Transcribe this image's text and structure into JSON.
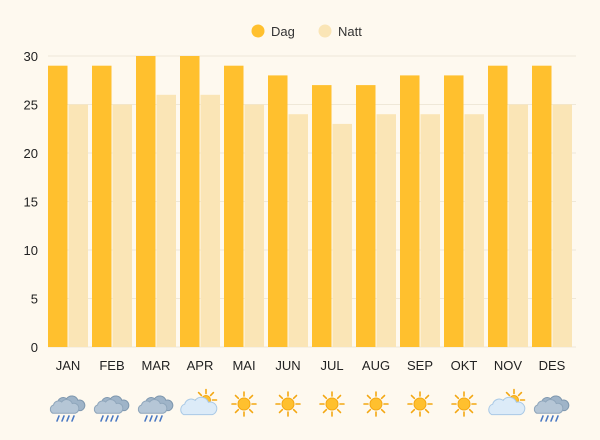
{
  "chart_data": {
    "type": "bar",
    "categories": [
      "JAN",
      "FEB",
      "MAR",
      "APR",
      "MAI",
      "JUN",
      "JUL",
      "AUG",
      "SEP",
      "OKT",
      "NOV",
      "DES"
    ],
    "series": [
      {
        "name": "Dag",
        "values": [
          29,
          29,
          30,
          30,
          29,
          28,
          27,
          27,
          28,
          28,
          29,
          29
        ],
        "color": "#FFC02E"
      },
      {
        "name": "Natt",
        "values": [
          25,
          25,
          26,
          26,
          25,
          24,
          23,
          24,
          24,
          24,
          25,
          25
        ],
        "color": "#FAE5B6"
      }
    ],
    "yticks": [
      0,
      5,
      10,
      15,
      20,
      25,
      30
    ],
    "ylim": [
      0,
      30
    ],
    "grid": true,
    "legend_position": "top-center",
    "weather_icons": [
      "rain-cloud-icon",
      "rain-cloud-icon",
      "rain-cloud-icon",
      "partly-cloudy-icon",
      "sun-icon",
      "sun-icon",
      "sun-icon",
      "sun-icon",
      "sun-icon",
      "sun-icon",
      "partly-cloudy-icon",
      "rain-cloud-icon"
    ]
  }
}
